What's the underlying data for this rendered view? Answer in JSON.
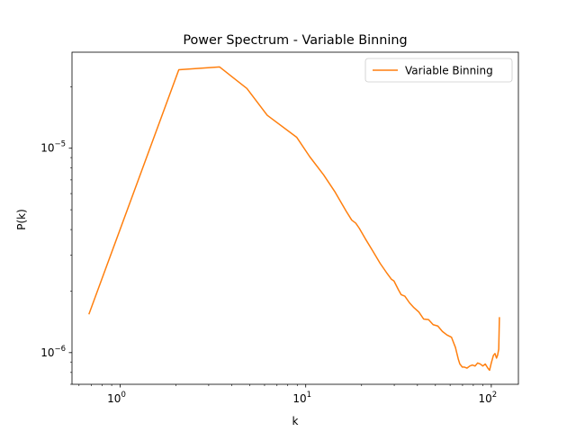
{
  "chart_data": {
    "type": "line",
    "title": "Power Spectrum - Variable Binning",
    "xlabel": "k",
    "ylabel": "P(k)",
    "xscale": "log",
    "yscale": "log",
    "xlim": [
      0.55,
      140
    ],
    "ylim": [
      7e-07,
      2.95e-05
    ],
    "grid": false,
    "legend_position": "top-right",
    "x_ticks": [
      {
        "value": 1,
        "base": "10",
        "exp": "0"
      },
      {
        "value": 10,
        "base": "10",
        "exp": "1"
      },
      {
        "value": 100,
        "base": "10",
        "exp": "2"
      }
    ],
    "y_ticks": [
      {
        "value": 1e-06,
        "base": "10",
        "exp": "−6"
      },
      {
        "value": 1e-05,
        "base": "10",
        "exp": "−5"
      }
    ],
    "series": [
      {
        "name": "Variable Binning",
        "color": "#ff7f0e",
        "x": [
          0.68,
          2.07,
          3.43,
          4.82,
          6.2,
          8.95,
          10.5,
          12.5,
          14.4,
          16.5,
          17.7,
          18.6,
          19.4,
          20.9,
          22.9,
          25.2,
          27.2,
          28.9,
          29.9,
          31.6,
          32.7,
          34.2,
          36.3,
          38.3,
          40.7,
          43.2,
          45.9,
          48.6,
          51.5,
          54.5,
          57.7,
          61.0,
          64.1,
          66.4,
          67.7,
          69.8,
          71.4,
          74.0,
          76.6,
          79.1,
          81.7,
          84.4,
          87.2,
          90.0,
          92.8,
          95.8,
          97.9,
          100.0,
          102.7,
          104.7,
          106.7,
          108.1,
          109.7,
          110.6
        ],
        "y": [
          1.55e-06,
          2.42e-05,
          2.5e-05,
          1.96e-05,
          1.45e-05,
          1.13e-05,
          9.1e-06,
          7.4e-06,
          6.1e-06,
          4.93e-06,
          4.45e-06,
          4.3e-06,
          4.07e-06,
          3.62e-06,
          3.16e-06,
          2.73e-06,
          2.47e-06,
          2.29e-06,
          2.24e-06,
          2.03e-06,
          1.92e-06,
          1.89e-06,
          1.75e-06,
          1.66e-06,
          1.58e-06,
          1.46e-06,
          1.45e-06,
          1.37e-06,
          1.35e-06,
          1.27e-06,
          1.22e-06,
          1.19e-06,
          1.06e-06,
          9.3e-07,
          8.8e-07,
          8.5e-07,
          8.5e-07,
          8.4e-07,
          8.6e-07,
          8.7e-07,
          8.6e-07,
          8.9e-07,
          8.8e-07,
          8.6e-07,
          8.8e-07,
          8.4e-07,
          8.2e-07,
          8.9e-07,
          9.7e-07,
          9.9e-07,
          9.4e-07,
          9.7e-07,
          1.04e-06,
          1.48e-06
        ]
      }
    ]
  }
}
